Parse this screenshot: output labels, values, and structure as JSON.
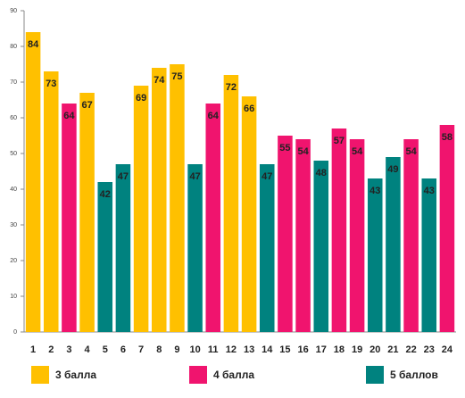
{
  "chart_data": {
    "type": "bar",
    "categories": [
      "1",
      "2",
      "3",
      "4",
      "5",
      "6",
      "7",
      "8",
      "9",
      "10",
      "11",
      "12",
      "13",
      "14",
      "15",
      "16",
      "17",
      "18",
      "19",
      "20",
      "21",
      "22",
      "23",
      "24"
    ],
    "series": [
      {
        "name": "3 балла",
        "color": "#ffc000",
        "values": [
          84,
          73,
          null,
          67,
          null,
          null,
          69,
          74,
          75,
          null,
          null,
          72,
          66,
          null,
          null,
          null,
          null,
          null,
          null,
          null,
          null,
          null,
          null,
          null
        ]
      },
      {
        "name": "4 балла",
        "color": "#f0146e",
        "values": [
          null,
          null,
          64,
          null,
          null,
          null,
          null,
          null,
          null,
          null,
          64,
          null,
          null,
          null,
          55,
          54,
          null,
          57,
          54,
          null,
          null,
          54,
          null,
          58
        ]
      },
      {
        "name": "5 баллов",
        "color": "#00827f",
        "values": [
          null,
          null,
          null,
          null,
          42,
          47,
          null,
          null,
          null,
          47,
          null,
          null,
          null,
          47,
          null,
          null,
          48,
          null,
          null,
          43,
          49,
          null,
          43,
          null
        ]
      }
    ],
    "ylim": [
      0,
      90
    ],
    "yticks": [
      0,
      10,
      20,
      30,
      40,
      50,
      60,
      70,
      80,
      90
    ],
    "grid": false
  }
}
